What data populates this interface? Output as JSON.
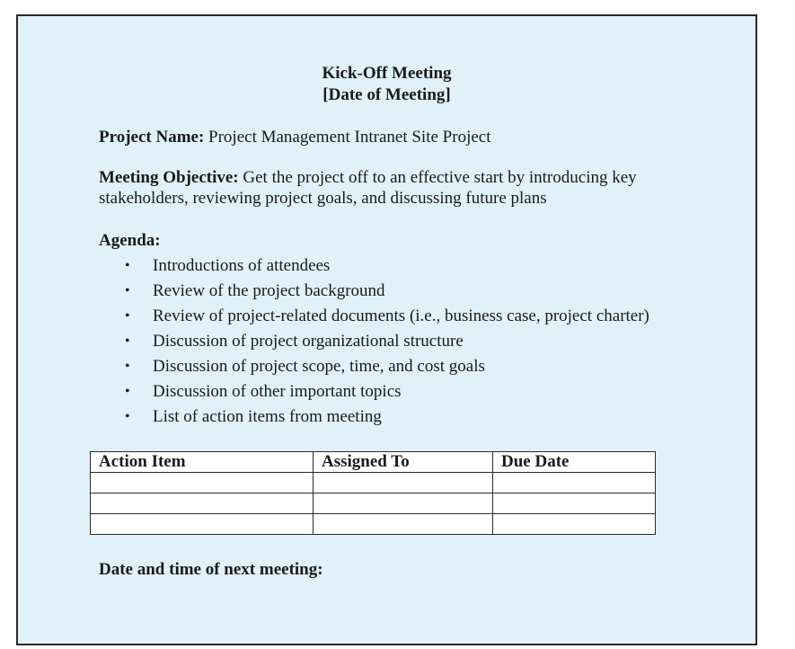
{
  "title": "Kick-Off Meeting",
  "subtitle": "[Date of Meeting]",
  "project_name": {
    "label": "Project Name:",
    "value": "Project Management Intranet Site Project"
  },
  "meeting_objective": {
    "label": "Meeting Objective:",
    "value": "Get the project off to an effective start by introducing key stakeholders, reviewing project goals, and discussing future plans"
  },
  "agenda": {
    "label": "Agenda:",
    "bullet": "•",
    "items": [
      "Introductions of attendees",
      "Review of the project background",
      "Review of project-related documents (i.e., business case, project charter)",
      "Discussion of project organizational structure",
      "Discussion of project scope, time, and cost goals",
      "Discussion of other important topics",
      "List of action items from meeting"
    ]
  },
  "action_table": {
    "headers": [
      "Action Item",
      "Assigned To",
      "Due Date"
    ],
    "rows": [
      [
        "",
        "",
        ""
      ],
      [
        "",
        "",
        ""
      ],
      [
        "",
        "",
        ""
      ]
    ]
  },
  "next_meeting_label": "Date and time of next meeting:",
  "colors": {
    "background": "#e0f1fa",
    "border": "#2a2a2a",
    "text": "#1a1a1a"
  }
}
